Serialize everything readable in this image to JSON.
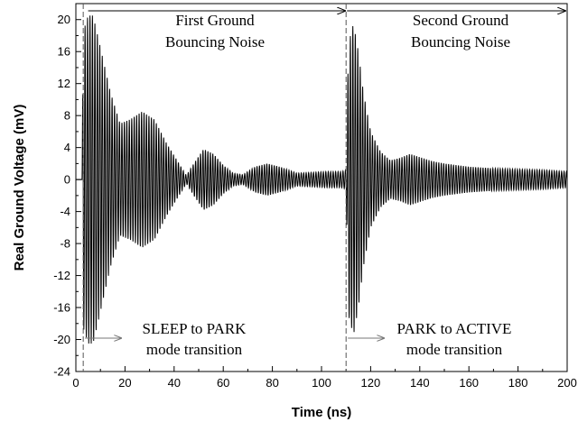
{
  "chart_data": {
    "type": "line",
    "title": "",
    "xlabel": "Time (ns)",
    "ylabel": "Real Ground Voltage (mV)",
    "xlim": [
      0,
      200
    ],
    "ylim": [
      -24,
      22
    ],
    "x_ticks": [
      0,
      20,
      40,
      60,
      80,
      100,
      120,
      140,
      160,
      180,
      200
    ],
    "y_ticks": [
      -24,
      -20,
      -16,
      -12,
      -8,
      -4,
      0,
      4,
      8,
      12,
      16,
      20
    ],
    "grid": false,
    "legend": "none",
    "line_color": "#000000",
    "series": [
      {
        "style": "damped oscillation (ground bounce noise)",
        "oscillation_period_ns": 1.0,
        "envelope_peak_mV": [
          [
            2.5,
            0
          ],
          [
            3,
            18.5
          ],
          [
            5,
            20.5
          ],
          [
            7,
            20.5
          ],
          [
            10,
            16.5
          ],
          [
            14,
            11
          ],
          [
            18,
            7
          ],
          [
            22,
            7.5
          ],
          [
            27,
            8.5
          ],
          [
            32,
            7.5
          ],
          [
            37,
            4.5
          ],
          [
            42,
            2
          ],
          [
            45,
            0.5
          ],
          [
            48,
            2
          ],
          [
            52,
            3.8
          ],
          [
            56,
            3.2
          ],
          [
            60,
            1.8
          ],
          [
            64,
            0.8
          ],
          [
            68,
            0.6
          ],
          [
            73,
            1.6
          ],
          [
            78,
            2
          ],
          [
            84,
            1.5
          ],
          [
            90,
            0.8
          ],
          [
            96,
            0.9
          ],
          [
            102,
            1
          ],
          [
            108,
            1
          ],
          [
            110,
            1.2
          ],
          [
            111,
            17
          ],
          [
            113,
            19.5
          ],
          [
            115,
            16
          ],
          [
            117,
            11
          ],
          [
            120,
            6
          ],
          [
            124,
            3.5
          ],
          [
            128,
            2.4
          ],
          [
            132,
            2.7
          ],
          [
            136,
            3.2
          ],
          [
            140,
            2.8
          ],
          [
            145,
            2.3
          ],
          [
            150,
            2
          ],
          [
            160,
            1.6
          ],
          [
            170,
            1.4
          ],
          [
            180,
            1.3
          ],
          [
            190,
            1.2
          ],
          [
            200,
            1.0
          ]
        ]
      }
    ],
    "markers": [
      {
        "x": 3,
        "label": "SLEEP to PARK mode transition"
      },
      {
        "x": 110,
        "label": "PARK to ACTIVE mode transition"
      }
    ],
    "annotations": {
      "first_region": [
        "First Ground",
        "Bouncing Noise"
      ],
      "second_region": [
        "Second Ground",
        "Bouncing Noise"
      ],
      "first_transition": [
        "SLEEP to PARK",
        "mode transition"
      ],
      "second_transition": [
        "PARK to ACTIVE",
        "mode transition"
      ]
    }
  }
}
